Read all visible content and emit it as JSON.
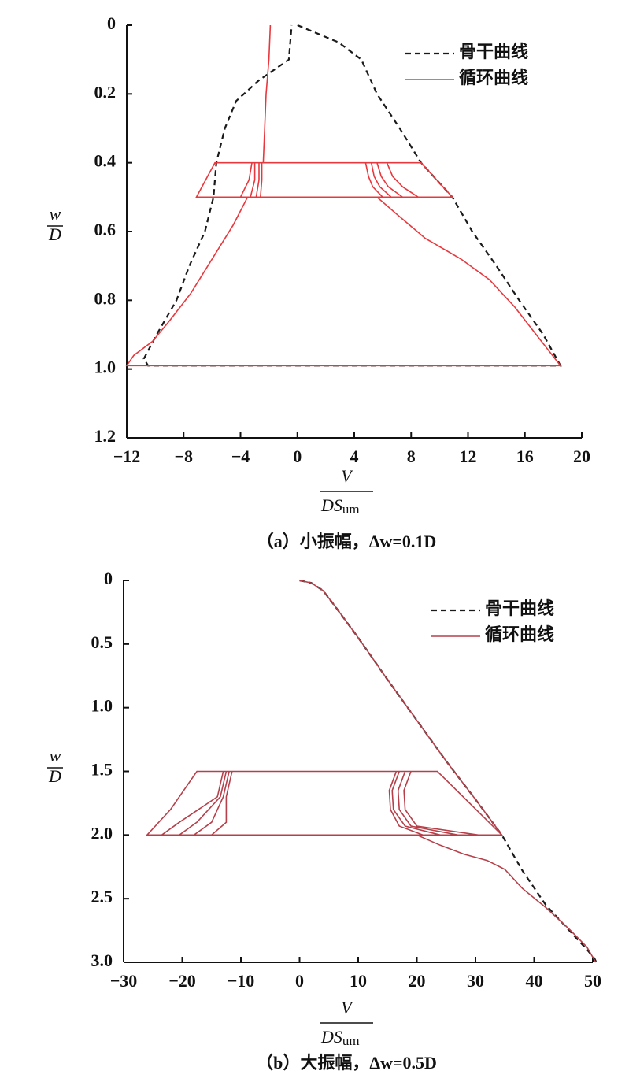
{
  "chart_data": [
    {
      "type": "line",
      "y_label_numerator": "w",
      "y_label_denominator": "D",
      "x_label_numerator": "V",
      "x_label_denominator": "DS",
      "x_label_subscript": "um",
      "caption": "（a）小振幅，Δw=0.1D",
      "xlim": [
        -12,
        20
      ],
      "ylim": [
        0,
        1.2
      ],
      "y_inverted": true,
      "xticks": [
        {
          "value": -12,
          "label": "−12"
        },
        {
          "value": -8,
          "label": "−8"
        },
        {
          "value": -4,
          "label": "−4"
        },
        0,
        4,
        8,
        12,
        16,
        20
      ],
      "yticks": [
        0,
        0.2,
        0.4,
        0.6,
        0.8,
        {
          "value": 1,
          "label": "1.0"
        },
        1.2
      ],
      "legend": "upper right",
      "series": [
        {
          "name": "骨干曲线",
          "color": "#1a1a1a",
          "linestyle": "dashed",
          "x": [
            0,
            2.9,
            4.5,
            5.6,
            7.2,
            8.7,
            10.9,
            12.3,
            14,
            15.6,
            17.3,
            18.5,
            -10.5,
            -10.8,
            -9.9,
            -8.5,
            -7.6,
            -6.5,
            -5.9,
            -5.7,
            -5.1,
            -4.3,
            -2.7,
            -0.6,
            -0.4
          ],
          "values": [
            0,
            0.05,
            0.1,
            0.2,
            0.3,
            0.4,
            0.5,
            0.6,
            0.7,
            0.8,
            0.9,
            0.99,
            0.99,
            0.97,
            0.9,
            0.8,
            0.7,
            0.6,
            0.5,
            0.4,
            0.3,
            0.22,
            0.16,
            0.1,
            0
          ]
        },
        {
          "name": "循环曲线",
          "color": "#e8383d",
          "linestyle": "solid",
          "x": [
            -1.9,
            -2.0,
            -2.2,
            -2.3,
            -2.4,
            4.8,
            5.0,
            5.3,
            6.0,
            -2.6,
            -2.5,
            -2.5,
            5.2,
            5.4,
            5.8,
            6.6,
            -2.9,
            -2.7,
            -2.7,
            5.6,
            5.9,
            6.4,
            7.4,
            -3.3,
            -3.0,
            -3.0,
            6.3,
            6.7,
            7.4,
            8.5,
            -4.0,
            -3.4,
            -3.2,
            8.7,
            10.9,
            -7.1,
            -5.8,
            8.7,
            null,
            5.6,
            7.0,
            9.0,
            11.5,
            13.5,
            15.3,
            16.8,
            18.5,
            -12,
            -11.5,
            -10.2,
            -9,
            -7.5,
            -6,
            -4.5,
            -3.5
          ],
          "values": [
            0,
            0.1,
            0.2,
            0.3,
            0.4,
            0.4,
            0.44,
            0.47,
            0.5,
            0.5,
            0.45,
            0.4,
            0.4,
            0.44,
            0.47,
            0.5,
            0.5,
            0.45,
            0.4,
            0.4,
            0.44,
            0.47,
            0.5,
            0.5,
            0.45,
            0.4,
            0.4,
            0.44,
            0.47,
            0.5,
            0.5,
            0.45,
            0.4,
            0.4,
            0.5,
            0.5,
            0.4,
            0.4,
            null,
            0.5,
            0.55,
            0.62,
            0.68,
            0.74,
            0.82,
            0.9,
            0.99,
            0.99,
            0.96,
            0.92,
            0.86,
            0.78,
            0.68,
            0.58,
            0.5
          ]
        }
      ]
    },
    {
      "type": "line",
      "y_label_numerator": "w",
      "y_label_denominator": "D",
      "x_label_numerator": "V",
      "x_label_denominator": "DS",
      "x_label_subscript": "um",
      "caption": "（b）大振幅，Δw=0.5D",
      "xlim": [
        -30,
        50
      ],
      "ylim": [
        0,
        3
      ],
      "y_inverted": true,
      "xticks": [
        {
          "value": -30,
          "label": "−30"
        },
        {
          "value": -20,
          "label": "−20"
        },
        {
          "value": -10,
          "label": "−10"
        },
        0,
        10,
        20,
        30,
        40,
        50
      ],
      "yticks": [
        0,
        0.5,
        {
          "value": 1,
          "label": "1.0"
        },
        1.5,
        {
          "value": 2,
          "label": "2.0"
        },
        2.5,
        {
          "value": 3,
          "label": "3.0"
        }
      ],
      "legend": "upper right",
      "series": [
        {
          "name": "骨干曲线",
          "color": "#1a1a1a",
          "linestyle": "dashed",
          "x": [
            0,
            2,
            4,
            6,
            10,
            15,
            20,
            25,
            30,
            34.5,
            38,
            42,
            46,
            49,
            50.3,
            50.6
          ],
          "values": [
            0,
            0.02,
            0.08,
            0.2,
            0.45,
            0.78,
            1.1,
            1.42,
            1.72,
            2.0,
            2.28,
            2.55,
            2.75,
            2.9,
            2.97,
            3.0
          ]
        },
        {
          "name": "循环曲线",
          "color": "#b5404a",
          "linestyle": "solid",
          "x": [
            0,
            2,
            4,
            6,
            10,
            15,
            20,
            25,
            30,
            34.5,
            -26,
            -22,
            -17.5,
            23.5,
            34.5,
            null,
            19,
            17.8,
            18,
            20,
            30.5,
            -23.5,
            -20.5,
            -14,
            -13,
            19,
            null,
            18,
            16.8,
            17,
            19,
            27,
            -20.5,
            -17.5,
            -13.5,
            -12.5,
            18,
            null,
            17,
            15.8,
            16,
            18,
            24,
            -18,
            -15,
            -13,
            -12,
            17,
            null,
            16.5,
            15.3,
            15.5,
            17,
            21,
            -15,
            -12.5,
            -12.5,
            -11.5,
            16.5,
            null,
            20,
            24,
            28,
            32,
            35,
            38,
            42,
            46,
            49,
            50.5
          ],
          "values": [
            0,
            0.02,
            0.08,
            0.2,
            0.45,
            0.78,
            1.1,
            1.42,
            1.72,
            2.0,
            2.0,
            1.8,
            1.5,
            1.5,
            2.0,
            null,
            1.5,
            1.65,
            1.8,
            1.93,
            2.0,
            2.0,
            1.9,
            1.7,
            1.5,
            1.5,
            null,
            1.5,
            1.65,
            1.8,
            1.93,
            2.0,
            2.0,
            1.9,
            1.7,
            1.5,
            1.5,
            null,
            1.5,
            1.65,
            1.8,
            1.93,
            2.0,
            2.0,
            1.9,
            1.7,
            1.5,
            1.5,
            null,
            1.5,
            1.65,
            1.8,
            1.93,
            2.0,
            2.0,
            1.9,
            1.7,
            1.5,
            1.5,
            null,
            2.0,
            2.08,
            2.15,
            2.2,
            2.27,
            2.42,
            2.57,
            2.74,
            2.88,
            3.0
          ]
        }
      ]
    }
  ]
}
